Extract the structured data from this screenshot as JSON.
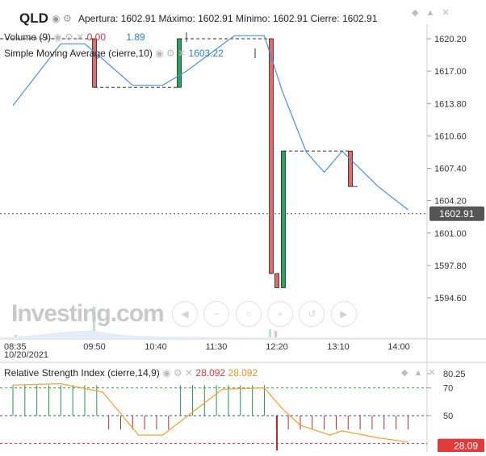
{
  "header": {
    "symbol": "QLD",
    "apertura_label": "Apertura:",
    "apertura": "1602.91",
    "maximo_label": "Máximo:",
    "maximo": "1602.91",
    "minimo_label": "Mínimo:",
    "minimo": "1602.91",
    "cierre_label": "Cierre:",
    "cierre": "1602.91"
  },
  "legend": {
    "volume_label": "Volume (9)",
    "volume_v1": "0.00",
    "volume_v2": "1.89",
    "sma_label": "Simple Moving Average (cierre,10)",
    "sma_value": "1603.22"
  },
  "rsi": {
    "label": "Relative Strength Index (cierre,14,9)",
    "v1": "28.092",
    "v2": "28.092",
    "axis_ticks": [
      "80.25",
      "70",
      "50",
      "28.09"
    ]
  },
  "watermark": "Investing.com",
  "price_axis": {
    "ticks": [
      "1620.20",
      "1617.00",
      "1613.80",
      "1610.60",
      "1607.40",
      "1604.20",
      "1601.00",
      "1597.80",
      "1594.60"
    ],
    "current_price": "1602.91"
  },
  "time_axis": {
    "labels": [
      "08:35",
      "09:50",
      "10:40",
      "11:30",
      "12:20",
      "13:10",
      "14:00"
    ],
    "date": "10/20/2021"
  },
  "colors": {
    "up": "#26a65b",
    "down": "#e36b6b",
    "sma": "#4a90d9",
    "rsi": "#f0a030"
  },
  "chart_data": {
    "type": "candlestick",
    "ylim": [
      1592.5,
      1622.5
    ],
    "candles": [
      {
        "open": 1620.2,
        "close": 1615.4,
        "high": 1620.2,
        "low": 1615.4
      },
      {
        "open": 1615.4,
        "close": 1620.2,
        "high": 1620.2,
        "low": 1615.4
      },
      {
        "open": 1620.2,
        "close": 1597.0,
        "high": 1620.2,
        "low": 1597.0
      },
      {
        "open": 1597.0,
        "close": 1595.6,
        "high": 1597.0,
        "low": 1595.6
      },
      {
        "open": 1595.6,
        "close": 1609.1,
        "high": 1609.1,
        "low": 1595.6
      },
      {
        "open": 1609.1,
        "close": 1605.6,
        "high": 1609.1,
        "low": 1605.6
      }
    ],
    "sma": [
      {
        "t": "08:35",
        "v": 1613.6
      },
      {
        "t": "09:15",
        "v": 1619.7
      },
      {
        "t": "09:35",
        "v": 1619.7
      },
      {
        "t": "09:50",
        "v": 1618.2
      },
      {
        "t": "10:15",
        "v": 1615.6
      },
      {
        "t": "10:40",
        "v": 1615.6
      },
      {
        "t": "11:00",
        "v": 1617.0
      },
      {
        "t": "11:40",
        "v": 1620.5
      },
      {
        "t": "12:05",
        "v": 1620.5
      },
      {
        "t": "12:20",
        "v": 1615.0
      },
      {
        "t": "12:40",
        "v": 1609.0
      },
      {
        "t": "12:55",
        "v": 1607.0
      },
      {
        "t": "13:10",
        "v": 1609.1
      },
      {
        "t": "13:40",
        "v": 1605.6
      },
      {
        "t": "14:05",
        "v": 1603.3
      }
    ],
    "rsi_line": [
      {
        "t": "08:35",
        "v": 72
      },
      {
        "t": "09:15",
        "v": 73
      },
      {
        "t": "09:50",
        "v": 67
      },
      {
        "t": "10:20",
        "v": 36
      },
      {
        "t": "10:40",
        "v": 36
      },
      {
        "t": "11:30",
        "v": 69
      },
      {
        "t": "12:05",
        "v": 70
      },
      {
        "t": "12:20",
        "v": 55
      },
      {
        "t": "12:35",
        "v": 43
      },
      {
        "t": "13:00",
        "v": 36
      },
      {
        "t": "13:10",
        "v": 39
      },
      {
        "t": "13:40",
        "v": 34
      },
      {
        "t": "14:05",
        "v": 31
      }
    ],
    "rsi_bars": [
      {
        "t": "08:35",
        "v": 72
      },
      {
        "t": "08:45",
        "v": 72
      },
      {
        "t": "08:55",
        "v": 72
      },
      {
        "t": "09:05",
        "v": 72
      },
      {
        "t": "09:15",
        "v": 72
      },
      {
        "t": "09:25",
        "v": 72
      },
      {
        "t": "09:35",
        "v": 72
      },
      {
        "t": "09:45",
        "v": 72
      },
      {
        "t": "09:55",
        "v": 40
      },
      {
        "t": "10:05",
        "v": 40
      },
      {
        "t": "10:15",
        "v": 40
      },
      {
        "t": "10:25",
        "v": 40
      },
      {
        "t": "10:35",
        "v": 40
      },
      {
        "t": "10:45",
        "v": 40
      },
      {
        "t": "10:55",
        "v": 72
      },
      {
        "t": "11:05",
        "v": 72
      },
      {
        "t": "11:15",
        "v": 72
      },
      {
        "t": "11:25",
        "v": 72
      },
      {
        "t": "11:35",
        "v": 72
      },
      {
        "t": "11:45",
        "v": 72
      },
      {
        "t": "11:55",
        "v": 72
      },
      {
        "t": "12:05",
        "v": 72
      },
      {
        "t": "12:15",
        "v": 40
      },
      {
        "t": "12:25",
        "v": 40
      },
      {
        "t": "12:35",
        "v": 40
      },
      {
        "t": "12:45",
        "v": 40
      },
      {
        "t": "12:55",
        "v": 40
      },
      {
        "t": "13:05",
        "v": 40
      },
      {
        "t": "13:15",
        "v": 40
      },
      {
        "t": "13:25",
        "v": 40
      },
      {
        "t": "13:35",
        "v": 40
      },
      {
        "t": "13:45",
        "v": 40
      },
      {
        "t": "13:55",
        "v": 40
      },
      {
        "t": "14:05",
        "v": 40
      }
    ],
    "rsi_levels": {
      "overbought": 70,
      "mid": 50,
      "oversold": 30
    }
  }
}
